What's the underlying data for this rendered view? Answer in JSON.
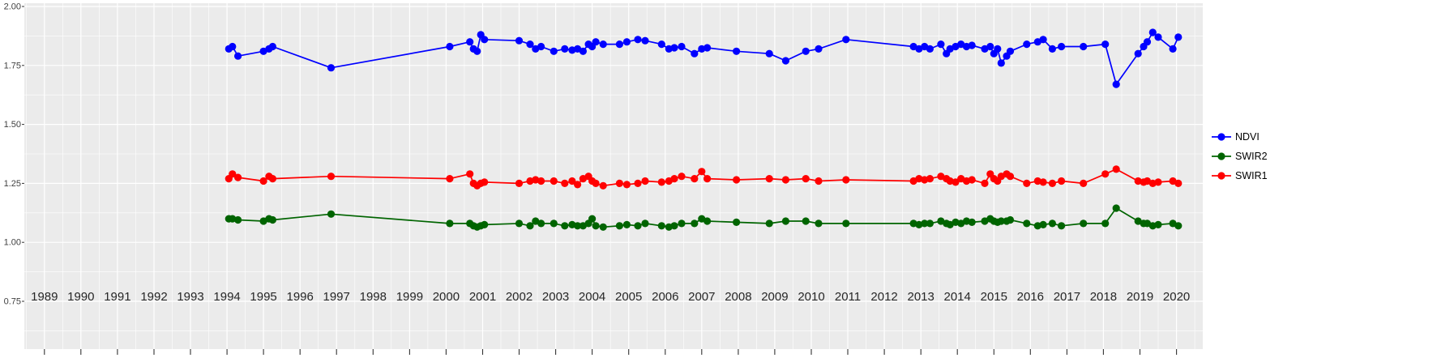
{
  "chart_data": {
    "type": "line",
    "title": "",
    "xlabel": "",
    "ylabel": "",
    "markers": true,
    "grid": true,
    "panel_bg": "#EBEBEB",
    "grid_color": "#FFFFFF",
    "axis_text_color_x": "#262626",
    "axis_text_color_y": "#404040",
    "tick_color": "#333333",
    "xlim": [
      1988.45,
      2020.72
    ],
    "ylim": [
      0.75,
      2.0
    ],
    "x_ticks": [
      1989,
      1990,
      1991,
      1992,
      1993,
      1994,
      1995,
      1996,
      1997,
      1998,
      1999,
      2000,
      2001,
      2002,
      2003,
      2004,
      2005,
      2006,
      2007,
      2008,
      2009,
      2010,
      2011,
      2012,
      2013,
      2014,
      2015,
      2016,
      2017,
      2018,
      2019,
      2020
    ],
    "y_ticks": [
      "2.00",
      "1.75",
      "1.50",
      "1.25",
      "1.00",
      "0.75"
    ],
    "legend_position": "right",
    "x": [
      1994.05,
      1994.15,
      1994.3,
      1995,
      1995.15,
      1995.25,
      1996.85,
      2000.1,
      2000.65,
      2000.75,
      2000.85,
      2000.95,
      2001.05,
      2002,
      2002.3,
      2002.45,
      2002.6,
      2002.95,
      2003.25,
      2003.45,
      2003.6,
      2003.75,
      2003.9,
      2004,
      2004.1,
      2004.3,
      2004.75,
      2004.95,
      2005.25,
      2005.45,
      2005.9,
      2006.1,
      2006.25,
      2006.45,
      2006.8,
      2007,
      2007.15,
      2007.95,
      2008.85,
      2009.3,
      2009.85,
      2010.2,
      2010.95,
      2012.8,
      2012.95,
      2013.1,
      2013.25,
      2013.55,
      2013.7,
      2013.8,
      2013.95,
      2014.1,
      2014.25,
      2014.4,
      2014.75,
      2014.9,
      2015,
      2015.1,
      2015.2,
      2015.35,
      2015.45,
      2015.9,
      2016.2,
      2016.35,
      2016.6,
      2016.85,
      2017.45,
      2018.05,
      2018.35,
      2018.95,
      2019.1,
      2019.2,
      2019.35,
      2019.5,
      2019.9,
      2020.05
    ],
    "series": [
      {
        "name": "NDVI",
        "color": "#0000FF",
        "values": [
          1.82,
          1.83,
          1.79,
          1.81,
          1.82,
          1.83,
          1.74,
          1.83,
          1.85,
          1.82,
          1.81,
          1.88,
          1.86,
          1.855,
          1.84,
          1.82,
          1.83,
          1.81,
          1.82,
          1.815,
          1.82,
          1.81,
          1.84,
          1.83,
          1.85,
          1.84,
          1.84,
          1.85,
          1.86,
          1.855,
          1.84,
          1.82,
          1.825,
          1.83,
          1.8,
          1.82,
          1.825,
          1.81,
          1.8,
          1.77,
          1.81,
          1.82,
          1.86,
          1.83,
          1.82,
          1.83,
          1.82,
          1.84,
          1.8,
          1.82,
          1.83,
          1.84,
          1.83,
          1.835,
          1.82,
          1.83,
          1.8,
          1.82,
          1.76,
          1.79,
          1.81,
          1.84,
          1.85,
          1.86,
          1.82,
          1.83,
          1.83,
          1.84,
          1.67,
          1.8,
          1.83,
          1.85,
          1.89,
          1.87,
          1.82,
          1.87
        ]
      },
      {
        "name": "SWIR2",
        "color": "#006400",
        "values": [
          1.1,
          1.1,
          1.095,
          1.09,
          1.1,
          1.095,
          1.12,
          1.08,
          1.08,
          1.07,
          1.065,
          1.07,
          1.075,
          1.08,
          1.07,
          1.09,
          1.08,
          1.08,
          1.07,
          1.075,
          1.07,
          1.07,
          1.08,
          1.1,
          1.07,
          1.065,
          1.07,
          1.075,
          1.07,
          1.08,
          1.07,
          1.065,
          1.07,
          1.08,
          1.08,
          1.1,
          1.09,
          1.085,
          1.08,
          1.09,
          1.09,
          1.08,
          1.08,
          1.08,
          1.075,
          1.08,
          1.08,
          1.09,
          1.08,
          1.075,
          1.085,
          1.08,
          1.09,
          1.085,
          1.09,
          1.1,
          1.09,
          1.085,
          1.09,
          1.09,
          1.095,
          1.08,
          1.07,
          1.075,
          1.08,
          1.07,
          1.08,
          1.08,
          1.145,
          1.09,
          1.08,
          1.08,
          1.07,
          1.075,
          1.08,
          1.07
        ]
      },
      {
        "name": "SWIR1",
        "color": "#FF0000",
        "values": [
          1.27,
          1.29,
          1.275,
          1.26,
          1.28,
          1.27,
          1.28,
          1.27,
          1.29,
          1.25,
          1.24,
          1.25,
          1.255,
          1.25,
          1.26,
          1.265,
          1.26,
          1.26,
          1.25,
          1.26,
          1.245,
          1.27,
          1.28,
          1.26,
          1.25,
          1.24,
          1.25,
          1.245,
          1.25,
          1.26,
          1.255,
          1.26,
          1.27,
          1.28,
          1.27,
          1.3,
          1.27,
          1.265,
          1.27,
          1.265,
          1.27,
          1.26,
          1.265,
          1.26,
          1.27,
          1.265,
          1.27,
          1.28,
          1.27,
          1.26,
          1.255,
          1.27,
          1.26,
          1.265,
          1.25,
          1.29,
          1.27,
          1.26,
          1.28,
          1.29,
          1.28,
          1.25,
          1.26,
          1.255,
          1.25,
          1.26,
          1.25,
          1.29,
          1.31,
          1.26,
          1.255,
          1.26,
          1.25,
          1.255,
          1.26,
          1.25
        ]
      }
    ]
  }
}
